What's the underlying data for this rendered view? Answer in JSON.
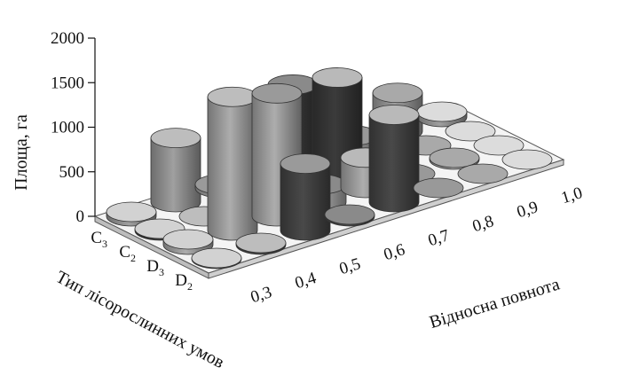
{
  "chart_data": {
    "type": "bar",
    "variant": "3d-cylinder",
    "ylabel": "Площа, га",
    "xlabel": "Відносна повнота",
    "zlabel": "Тип лісорослинних умов",
    "ylim": [
      0,
      2000
    ],
    "yticks": [
      "0",
      "500",
      "1000",
      "1500",
      "2000"
    ],
    "categories": [
      "0,3",
      "0,4",
      "0,5",
      "0,6",
      "0,7",
      "0,8",
      "0,9",
      "1,0"
    ],
    "series": [
      {
        "name": "D2",
        "label_base": "D",
        "label_sub": "2",
        "color": "#3a3a3a",
        "values": [
          10,
          20,
          750,
          20,
          980,
          0,
          0,
          0
        ]
      },
      {
        "name": "D3",
        "label_base": "D",
        "label_sub": "3",
        "color": "#8a8a8a",
        "values": [
          60,
          1500,
          1380,
          200,
          340,
          0,
          20,
          0
        ]
      },
      {
        "name": "C2",
        "label_base": "C",
        "label_sub": "2",
        "color": "#2f2f2f",
        "values": [
          20,
          0,
          30,
          1160,
          1080,
          0,
          0,
          0
        ]
      },
      {
        "name": "C3",
        "label_base": "C",
        "label_sub": "3",
        "color": "#808080",
        "values": [
          50,
          720,
          40,
          130,
          470,
          110,
          430,
          60
        ]
      }
    ],
    "top_colors": [
      "#d2d2d2",
      "#bdbdbd",
      "#9a9a9a",
      "#8a8a8a",
      "#b9b9b9",
      "#999999",
      "#a9a9a9",
      "#dcdcdc"
    ],
    "grid": false,
    "legend": "none"
  }
}
